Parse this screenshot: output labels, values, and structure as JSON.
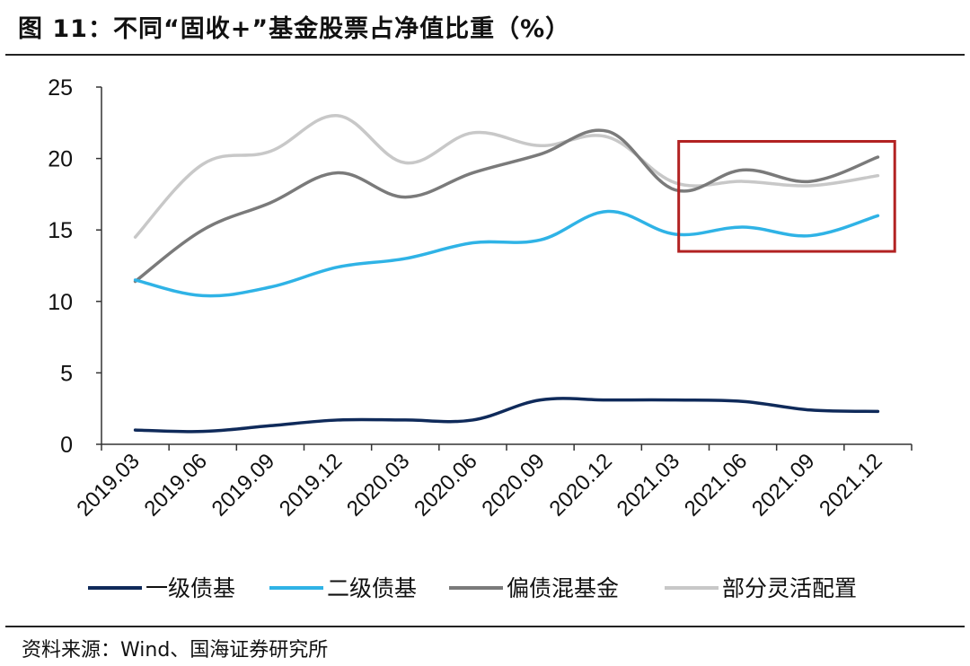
{
  "title": "图 11：不同“固收+”基金股票占净值比重（%）",
  "source": "资料来源：Wind、国海证券研究所",
  "chart_data": {
    "type": "line",
    "categories": [
      "2019.03",
      "2019.06",
      "2019.09",
      "2019.12",
      "2020.03",
      "2020.06",
      "2020.09",
      "2020.12",
      "2021.03",
      "2021.06",
      "2021.09",
      "2021.12"
    ],
    "ylim": [
      0,
      25
    ],
    "yticks": [
      "0",
      "5",
      "10",
      "15",
      "20",
      "25"
    ],
    "legend_position": "bottom",
    "grid": false,
    "highlight_box": {
      "x_from": "2021.06",
      "x_to": "2021.12",
      "y_from": 13.5,
      "y_to": 21.2,
      "color": "#b22222"
    },
    "series": [
      {
        "name": "一级债基",
        "color": "#0f2a5a",
        "values": [
          1.0,
          0.9,
          1.3,
          1.7,
          1.7,
          1.7,
          3.1,
          3.1,
          3.1,
          3.0,
          2.4,
          2.3
        ]
      },
      {
        "name": "二级债基",
        "color": "#2fb3e6",
        "values": [
          11.5,
          10.4,
          11.0,
          12.4,
          13.0,
          14.1,
          14.3,
          16.3,
          14.7,
          15.2,
          14.6,
          16.0
        ]
      },
      {
        "name": "偏债混基金",
        "color": "#7a7a7a",
        "values": [
          11.4,
          15.0,
          16.9,
          19.0,
          17.3,
          19.0,
          20.3,
          21.9,
          17.8,
          19.2,
          18.4,
          20.1
        ]
      },
      {
        "name": "部分灵活配置",
        "color": "#c8c8c8",
        "values": [
          14.5,
          19.6,
          20.5,
          23.0,
          19.7,
          21.8,
          20.9,
          21.5,
          18.3,
          18.4,
          18.1,
          18.8
        ]
      }
    ]
  }
}
